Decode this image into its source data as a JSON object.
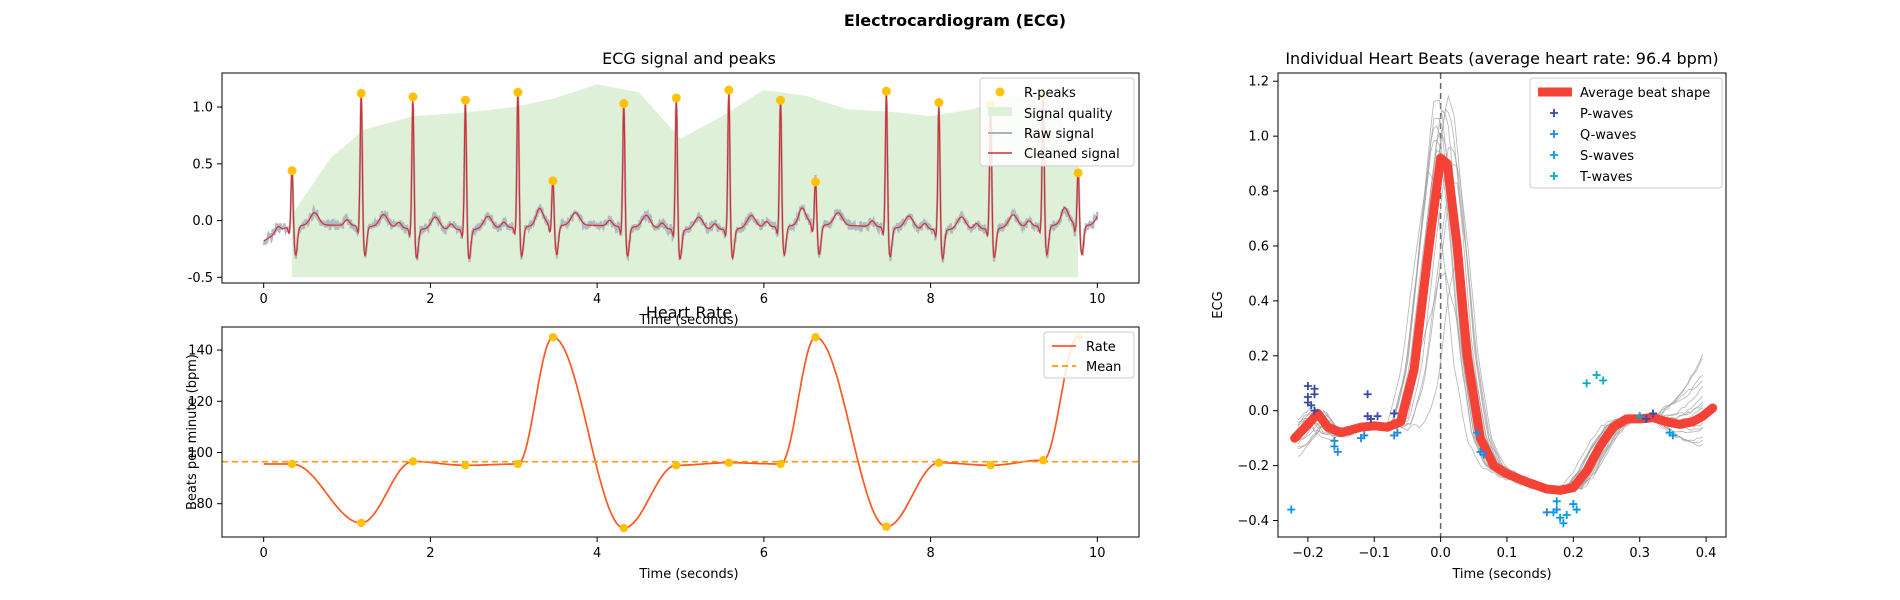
{
  "figure": {
    "title": "Electrocardiogram (ECG)"
  },
  "chart_data": [
    {
      "id": "ecg",
      "type": "line",
      "title": "ECG signal and peaks",
      "xlabel": "Time (seconds)",
      "ylabel": "",
      "xlim": [
        -0.5,
        10.5
      ],
      "ylim": [
        -0.55,
        1.3
      ],
      "xticks": [
        0,
        2,
        4,
        6,
        8,
        10
      ],
      "yticks": [
        -0.5,
        0.0,
        0.5,
        1.0
      ],
      "peaks_t": [
        0.34,
        1.17,
        1.79,
        2.42,
        3.05,
        3.47,
        4.32,
        4.95,
        5.58,
        6.2,
        6.62,
        7.47,
        8.1,
        8.72,
        9.35,
        9.77
      ],
      "peaks_v": [
        0.44,
        1.12,
        1.09,
        1.06,
        1.13,
        0.35,
        1.03,
        1.08,
        1.15,
        1.06,
        0.34,
        1.14,
        1.04,
        1.02,
        1.1,
        0.42
      ],
      "quality": {
        "x": [
          0.34,
          0.8,
          1.2,
          1.8,
          2.4,
          3.0,
          3.5,
          4.0,
          4.5,
          5.0,
          5.5,
          6.0,
          6.5,
          7.0,
          7.5,
          8.0,
          8.5,
          9.0,
          9.5,
          9.77
        ],
        "y": [
          0.05,
          0.55,
          0.8,
          0.92,
          0.95,
          1.0,
          1.08,
          1.2,
          1.13,
          0.72,
          0.92,
          1.15,
          1.1,
          0.98,
          0.96,
          0.92,
          0.98,
          1.1,
          1.02,
          0.5
        ]
      },
      "legend": [
        "R-peaks",
        "Signal quality",
        "Raw signal",
        "Cleaned signal"
      ],
      "legend_loc": "top-right",
      "colors": {
        "peaks": "#FFC107",
        "quality": "#DFF0D8",
        "raw": "#A9B4C0",
        "clean": "#D32F2F"
      }
    },
    {
      "id": "rate",
      "type": "line",
      "title": "Heart Rate",
      "xlabel": "Time (seconds)",
      "ylabel": "Beats per minute (bpm)",
      "xlim": [
        -0.5,
        10.5
      ],
      "ylim": [
        67,
        149
      ],
      "xticks": [
        0,
        2,
        4,
        6,
        8,
        10
      ],
      "yticks": [
        80,
        100,
        120,
        140
      ],
      "t": [
        0.34,
        1.17,
        1.79,
        2.42,
        3.05,
        3.47,
        4.32,
        4.95,
        5.58,
        6.2,
        6.62,
        7.47,
        8.1,
        8.72,
        9.35,
        9.77
      ],
      "rate": [
        95.5,
        72.5,
        96.5,
        95.0,
        95.5,
        145.0,
        70.5,
        95.0,
        96.0,
        95.5,
        145.0,
        71.0,
        96.0,
        95.0,
        97.0,
        145.0
      ],
      "mean": 96.4,
      "legend": [
        "Rate",
        "Mean"
      ],
      "legend_loc": "top-right",
      "colors": {
        "rate": "#FF5722",
        "mean": "#FF9800",
        "points": "#FFC107"
      }
    },
    {
      "id": "beats",
      "type": "line",
      "title": "Individual Heart Beats (average heart rate: 96.4 bpm)",
      "xlabel": "Time (seconds)",
      "ylabel": "ECG",
      "xlim": [
        -0.245,
        0.43
      ],
      "ylim": [
        -0.46,
        1.23
      ],
      "xticks": [
        -0.2,
        -0.1,
        0.0,
        0.1,
        0.2,
        0.3,
        0.4
      ],
      "xtick_labels": [
        "−0.2",
        "−0.1",
        "0.0",
        "0.1",
        "0.2",
        "0.3",
        "0.4"
      ],
      "yticks": [
        -0.4,
        -0.2,
        0.0,
        0.2,
        0.4,
        0.6,
        0.8,
        1.0,
        1.2
      ],
      "ytick_labels": [
        "−0.4",
        "−0.2",
        "0.0",
        "0.2",
        "0.4",
        "0.6",
        "0.8",
        "1.0",
        "1.2"
      ],
      "avg": {
        "x": [
          -0.22,
          -0.2,
          -0.185,
          -0.17,
          -0.15,
          -0.12,
          -0.1,
          -0.08,
          -0.06,
          -0.04,
          -0.02,
          0.0,
          0.01,
          0.025,
          0.04,
          0.06,
          0.08,
          0.1,
          0.13,
          0.16,
          0.18,
          0.2,
          0.22,
          0.24,
          0.26,
          0.28,
          0.3,
          0.32,
          0.34,
          0.36,
          0.38,
          0.395,
          0.41
        ],
        "y": [
          -0.1,
          -0.05,
          -0.01,
          -0.06,
          -0.08,
          -0.06,
          -0.055,
          -0.06,
          -0.04,
          0.15,
          0.55,
          0.92,
          0.9,
          0.6,
          0.2,
          -0.1,
          -0.2,
          -0.23,
          -0.26,
          -0.285,
          -0.29,
          -0.28,
          -0.22,
          -0.13,
          -0.06,
          -0.03,
          -0.03,
          -0.025,
          -0.04,
          -0.05,
          -0.04,
          -0.02,
          0.01
        ]
      },
      "p_waves": [
        [
          -0.2,
          0.09
        ],
        [
          -0.2,
          0.05
        ],
        [
          -0.195,
          0.02
        ],
        [
          -0.19,
          0.06
        ],
        [
          -0.19,
          0.0
        ],
        [
          -0.2,
          0.03
        ],
        [
          -0.19,
          0.08
        ],
        [
          -0.11,
          0.06
        ],
        [
          -0.11,
          -0.02
        ],
        [
          -0.105,
          -0.03
        ],
        [
          -0.095,
          -0.02
        ],
        [
          -0.07,
          -0.01
        ],
        [
          0.3,
          -0.02
        ],
        [
          0.31,
          -0.03
        ],
        [
          0.32,
          -0.01
        ]
      ],
      "q_waves": [
        [
          -0.16,
          -0.13
        ],
        [
          -0.16,
          -0.11
        ],
        [
          -0.155,
          -0.15
        ],
        [
          -0.12,
          -0.1
        ],
        [
          -0.115,
          -0.09
        ],
        [
          -0.07,
          -0.09
        ],
        [
          -0.065,
          -0.08
        ],
        [
          0.06,
          -0.15
        ],
        [
          0.065,
          -0.16
        ],
        [
          0.055,
          -0.08
        ],
        [
          0.175,
          -0.36
        ],
        [
          0.16,
          -0.37
        ]
      ],
      "s_waves": [
        [
          -0.225,
          -0.36
        ],
        [
          0.175,
          -0.33
        ],
        [
          0.18,
          -0.39
        ],
        [
          0.19,
          -0.38
        ],
        [
          0.2,
          -0.34
        ],
        [
          0.205,
          -0.36
        ],
        [
          0.17,
          -0.37
        ],
        [
          0.185,
          -0.41
        ],
        [
          0.35,
          -0.09
        ],
        [
          0.345,
          -0.08
        ]
      ],
      "t_waves": [
        [
          0.22,
          0.1
        ],
        [
          0.235,
          0.13
        ],
        [
          0.245,
          0.11
        ],
        [
          0.3,
          -0.02
        ]
      ],
      "legend": [
        "Average beat shape",
        "P-waves",
        "Q-waves",
        "S-waves",
        "T-waves"
      ],
      "legend_loc": "top-right",
      "colors": {
        "avg": "#F44336",
        "beats": "#9E9E9E",
        "p": "#3949AB",
        "q": "#1E88E5",
        "s": "#039BE5",
        "t": "#00ACC1"
      }
    }
  ]
}
